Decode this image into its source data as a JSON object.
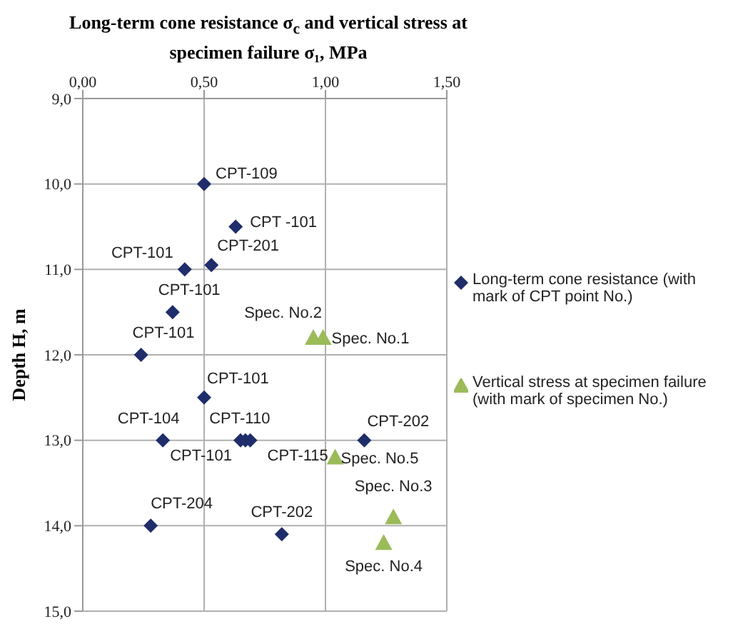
{
  "chart_data": {
    "type": "scatter",
    "title": "Long-term cone resistance σ$_{c}$ and vertical stress at specimen failure σ₁, MPa",
    "ylabel": "Depth H, m",
    "xlim": [
      0,
      1.5
    ],
    "xticks": [
      {
        "value": 0,
        "label": "0,00"
      },
      {
        "value": 0.5,
        "label": "0,50"
      },
      {
        "value": 1,
        "label": "1,00"
      },
      {
        "value": 1.5,
        "label": "1,50"
      }
    ],
    "ylim": [
      15,
      9
    ],
    "yticks": [
      {
        "value": 9,
        "label": "9,0"
      },
      {
        "value": 10,
        "label": "10,0"
      },
      {
        "value": 11,
        "label": "11,0"
      },
      {
        "value": 12,
        "label": "12,0"
      },
      {
        "value": 13,
        "label": "13,0"
      },
      {
        "value": 14,
        "label": "14,0"
      },
      {
        "value": 15,
        "label": "15,0"
      }
    ],
    "grid": true,
    "legend": "right",
    "series": [
      {
        "name": "Long-term  cone resistance (with mark of CPT point No.)",
        "color": "#1f2d6b",
        "marker": "diamond",
        "x": [
          0.5,
          0.63,
          0.42,
          0.53,
          0.37,
          0.24,
          0.5,
          0.33,
          0.65,
          0.67,
          0.69,
          1.16,
          0.28,
          0.82
        ],
        "values": [
          10,
          10.5,
          11,
          10.95,
          11.5,
          12,
          12.5,
          13,
          13,
          13,
          13,
          13,
          14,
          14.1
        ]
      },
      {
        "name": "Vertical stress at specimen failure (with mark of specimen No.)",
        "color": "#9bbb59",
        "marker": "triangle",
        "x": [
          0.99,
          0.95,
          1.28,
          1.24,
          1.04
        ],
        "values": [
          11.8,
          11.8,
          13.9,
          14.2,
          13.2
        ]
      }
    ],
    "annotations": [
      {
        "text": "CPT-109",
        "x": 0.5,
        "y": 10
      },
      {
        "text": "CPT -101",
        "x": 0.63,
        "y": 10.5
      },
      {
        "text": "CPT-101",
        "x": 0.42,
        "y": 11
      },
      {
        "text": "CPT-201",
        "x": 0.53,
        "y": 10.95
      },
      {
        "text": "CPT-101",
        "x": 0.37,
        "y": 11.5
      },
      {
        "text": "CPT-101",
        "x": 0.24,
        "y": 12
      },
      {
        "text": "CPT-101",
        "x": 0.5,
        "y": 12.5
      },
      {
        "text": "CPT-104",
        "x": 0.33,
        "y": 13
      },
      {
        "text": "CPT-101",
        "x": 0.65,
        "y": 13
      },
      {
        "text": "CPT-110",
        "x": 0.67,
        "y": 13
      },
      {
        "text": "CPT-115",
        "x": 0.69,
        "y": 13
      },
      {
        "text": "CPT-202",
        "x": 1.16,
        "y": 13
      },
      {
        "text": "CPT-204",
        "x": 0.28,
        "y": 14
      },
      {
        "text": "CPT-202",
        "x": 0.82,
        "y": 14.1
      },
      {
        "text": "Spec. No.1",
        "x": 0.99,
        "y": 11.8
      },
      {
        "text": "Spec. No.2",
        "x": 0.95,
        "y": 11.8
      },
      {
        "text": "Spec. No.3",
        "x": 1.28,
        "y": 13.9
      },
      {
        "text": "Spec. No.4",
        "x": 1.24,
        "y": 14.2
      },
      {
        "text": "Spec. No.5",
        "x": 1.04,
        "y": 13.2
      }
    ]
  }
}
